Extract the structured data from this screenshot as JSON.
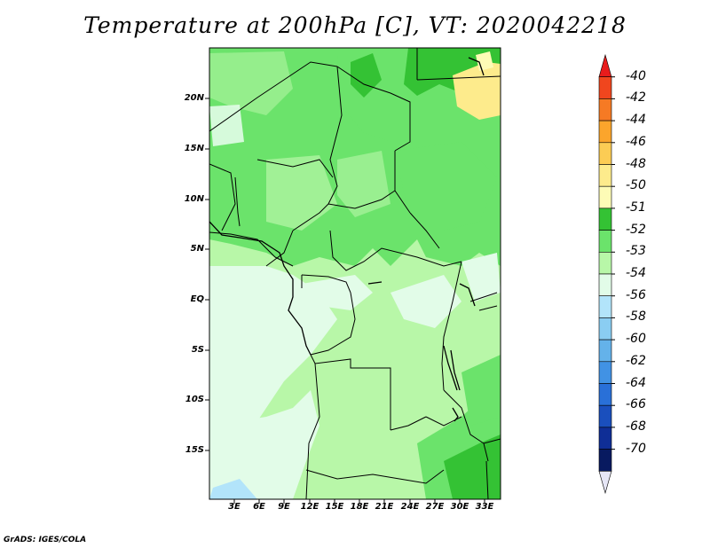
{
  "title": "Temperature at 200hPa [C], VT: 2020042218",
  "footer": "GrADS: IGES/COLA",
  "axes": {
    "latitude_ticks": [
      "20N",
      "15N",
      "10N",
      "5N",
      "EQ",
      "5S",
      "10S",
      "15S"
    ],
    "longitude_ticks": [
      "3E",
      "6E",
      "9E",
      "12E",
      "15E",
      "18E",
      "21E",
      "24E",
      "27E",
      "30E",
      "33E"
    ]
  },
  "colorbar": {
    "labels": [
      "-40",
      "-42",
      "-44",
      "-46",
      "-48",
      "-50",
      "-51",
      "-52",
      "-53",
      "-54",
      "-56",
      "-58",
      "-60",
      "-62",
      "-64",
      "-66",
      "-68",
      "-70"
    ],
    "colors": [
      "#e81c1c",
      "#f0461e",
      "#f67a24",
      "#fba52c",
      "#fccc54",
      "#fdeb8c",
      "#fdfbb6",
      "#34c234",
      "#6be36b",
      "#b8f7a8",
      "#e2fce8",
      "#b2e4fa",
      "#8acdf2",
      "#64b2ea",
      "#4192e4",
      "#2970d8",
      "#1a4fbd",
      "#0f2e96",
      "#081a60",
      "#e6e6f6"
    ]
  },
  "map": {
    "dominant_field_value": "-53",
    "warmest_region_value": "-51",
    "coolest_region_value": "-56"
  }
}
